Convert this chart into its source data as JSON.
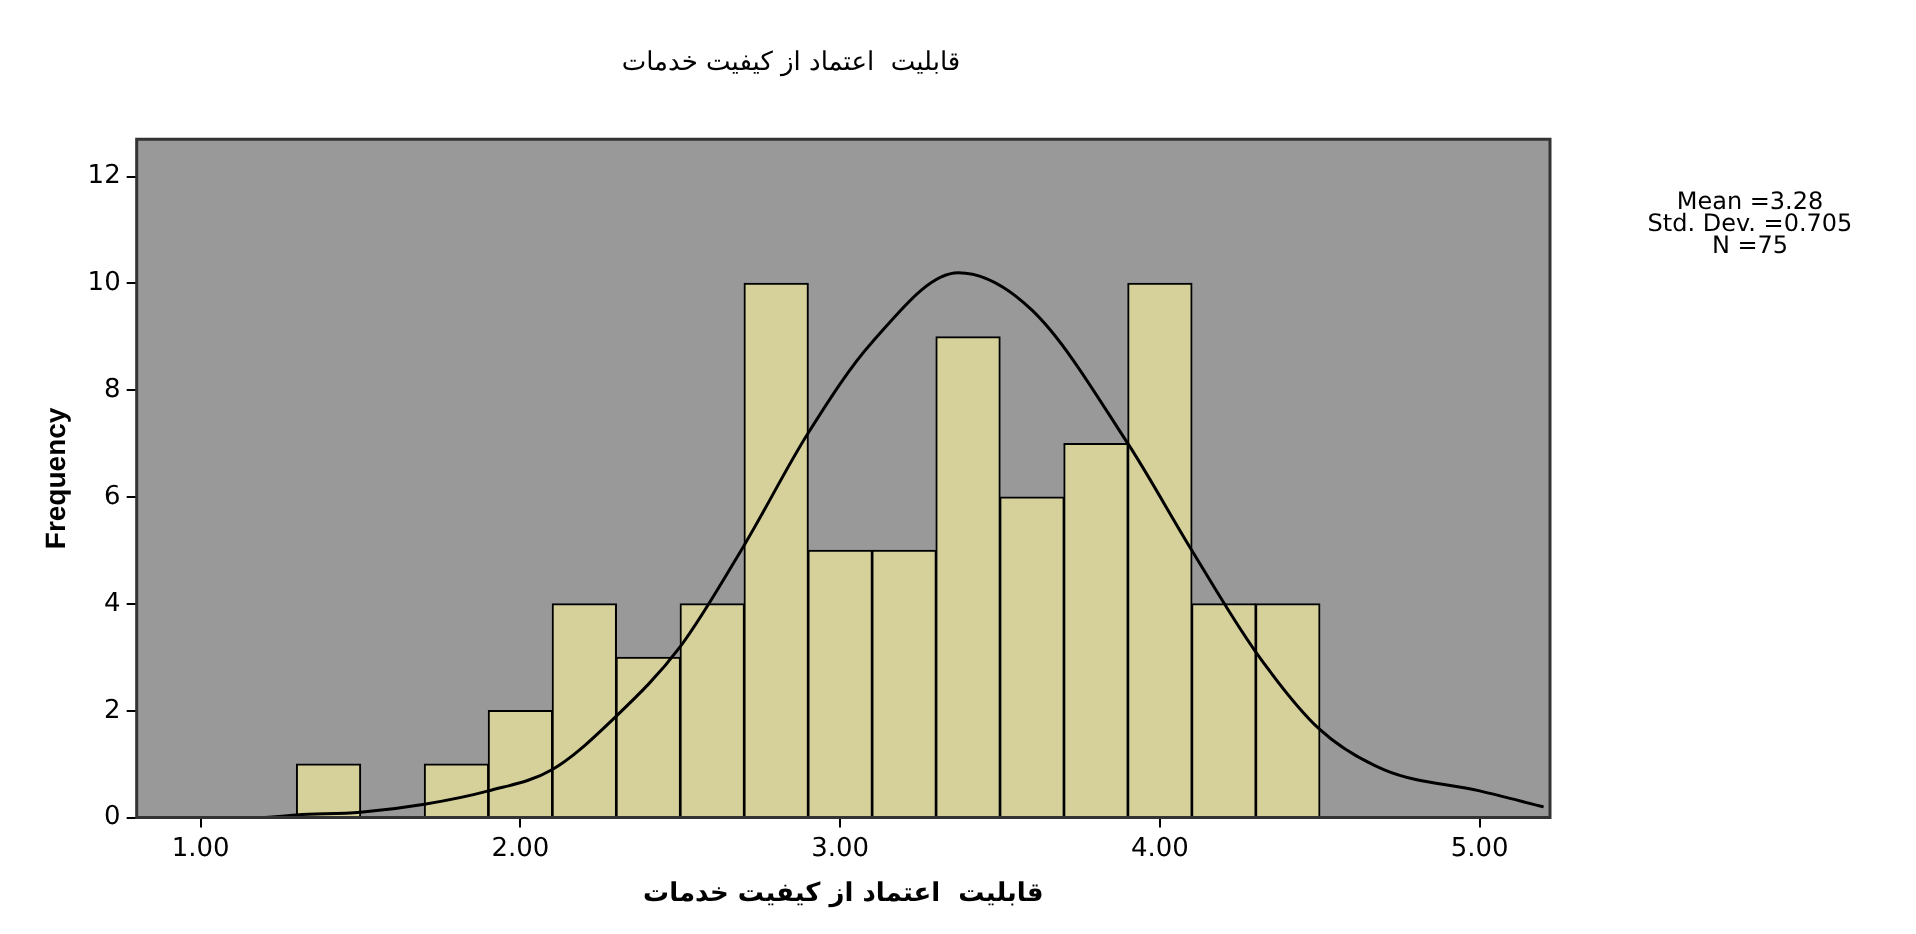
{
  "chart_data": {
    "type": "histogram",
    "title": "قابلیت  اعتماد از کیفیت خدمات",
    "xlabel": "قابلیت  اعتماد از کیفیت خدمات",
    "ylabel": "Frequency",
    "bins": [
      1.3,
      1.5,
      1.7,
      1.9,
      2.1,
      2.3,
      2.5,
      2.7,
      2.9,
      3.1,
      3.3,
      3.5,
      3.7,
      3.9,
      4.1,
      4.3,
      4.5
    ],
    "values": [
      1,
      0,
      1,
      2,
      4,
      3,
      4,
      10,
      5,
      5,
      9,
      6,
      7,
      10,
      4,
      4
    ],
    "color": "#d6d09b",
    "series": [
      {
        "type": "line",
        "color": "#000000",
        "x": [
          1.2,
          1.3,
          1.5,
          1.7,
          1.9,
          2.1,
          2.3,
          2.5,
          2.7,
          2.9,
          3.1,
          3.37,
          3.6,
          3.9,
          4.1,
          4.3,
          4.5,
          4.7,
          5.0,
          5.2
        ],
        "values": [
          0,
          0.05,
          0.1,
          0.25,
          0.5,
          0.9,
          1.9,
          3.2,
          5.1,
          7.2,
          8.9,
          10.2,
          9.5,
          7.0,
          5.0,
          3.1,
          1.65,
          0.9,
          0.5,
          0.2
        ]
      }
    ],
    "xlim": [
      0.8,
      5.22
    ],
    "xticks": [
      {
        "value": 1,
        "label": "1.00"
      },
      {
        "value": 2,
        "label": "2.00"
      },
      {
        "value": 3,
        "label": "3.00"
      },
      {
        "value": 4,
        "label": "4.00"
      },
      {
        "value": 5,
        "label": "5.00"
      }
    ],
    "ylim": [
      0,
      12.7
    ],
    "yticks": [
      0,
      2,
      4,
      6,
      8,
      10,
      12
    ],
    "annotations": [
      "Mean =3.28",
      "Std. Dev. =0.705",
      "N =75"
    ]
  }
}
